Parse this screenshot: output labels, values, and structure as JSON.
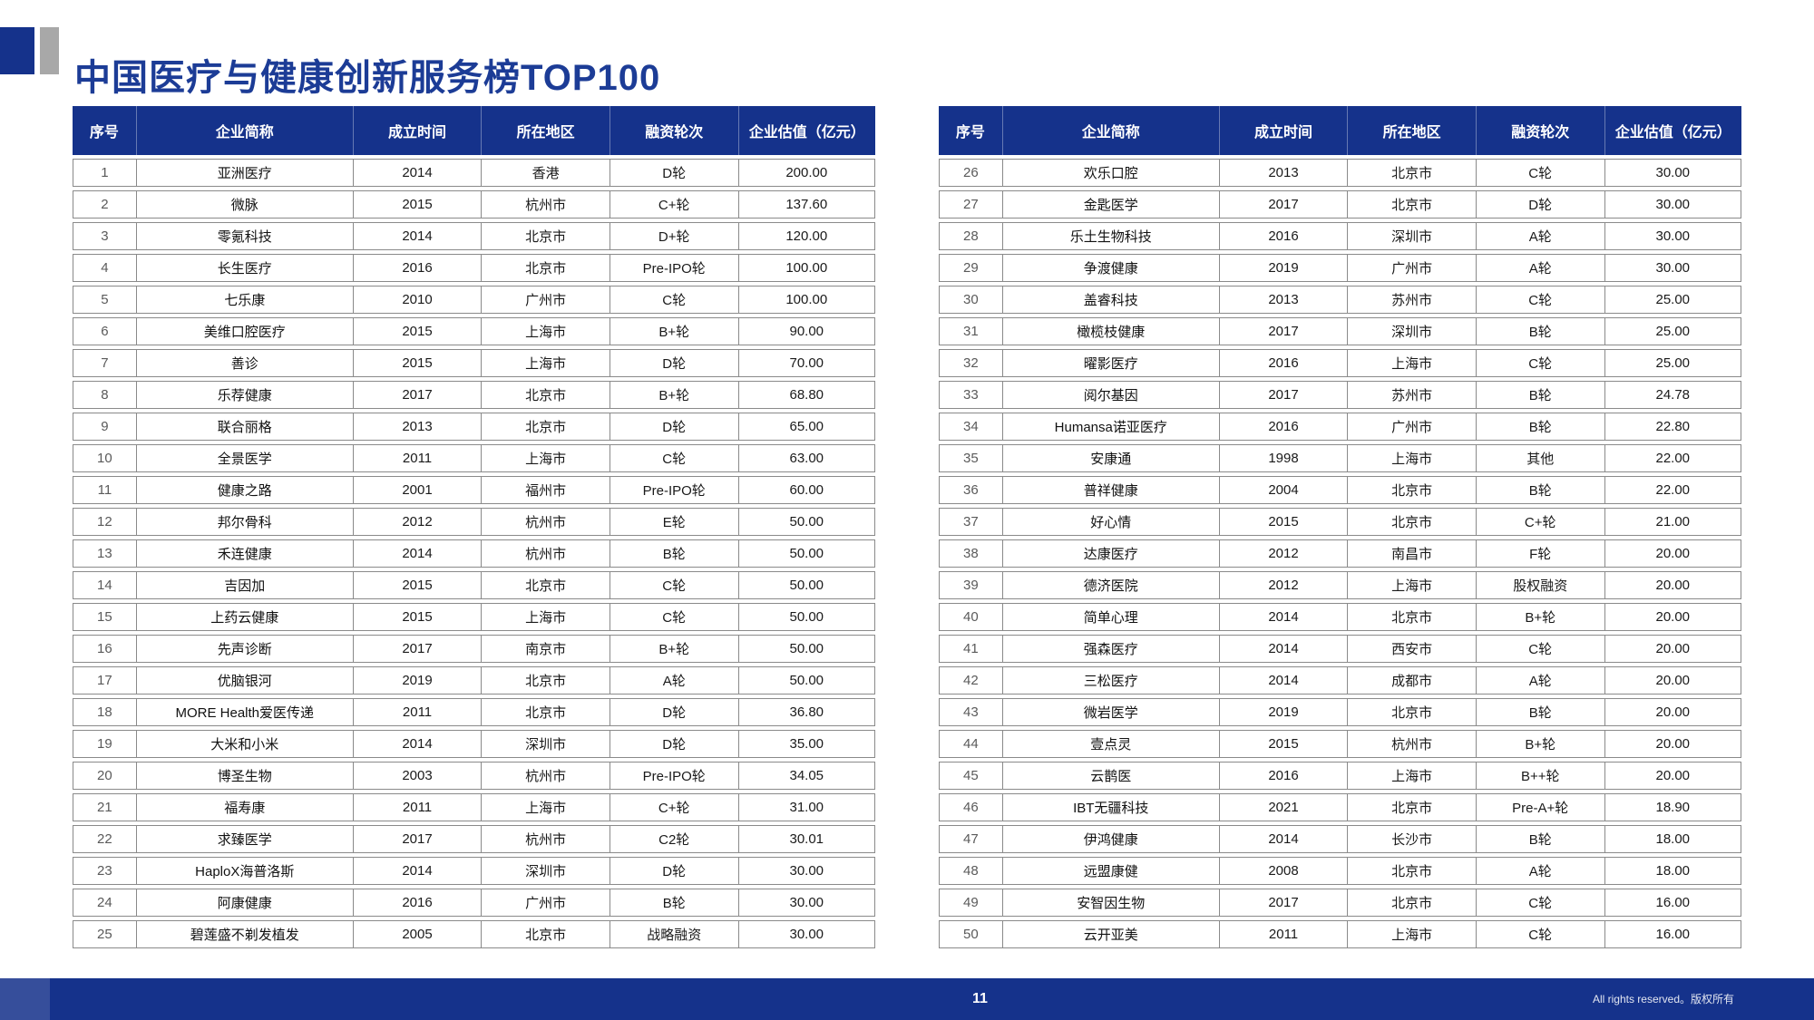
{
  "title": "中国医疗与健康创新服务榜TOP100",
  "table_headers": [
    "序号",
    "企业简称",
    "成立时间",
    "所在地区",
    "融资轮次",
    "企业估值（亿元）"
  ],
  "tables": {
    "left": {
      "rows": [
        [
          "1",
          "亚洲医疗",
          "2014",
          "香港",
          "D轮",
          "200.00"
        ],
        [
          "2",
          "微脉",
          "2015",
          "杭州市",
          "C+轮",
          "137.60"
        ],
        [
          "3",
          "零氪科技",
          "2014",
          "北京市",
          "D+轮",
          "120.00"
        ],
        [
          "4",
          "长生医疗",
          "2016",
          "北京市",
          "Pre-IPO轮",
          "100.00"
        ],
        [
          "5",
          "七乐康",
          "2010",
          "广州市",
          "C轮",
          "100.00"
        ],
        [
          "6",
          "美维口腔医疗",
          "2015",
          "上海市",
          "B+轮",
          "90.00"
        ],
        [
          "7",
          "善诊",
          "2015",
          "上海市",
          "D轮",
          "70.00"
        ],
        [
          "8",
          "乐荐健康",
          "2017",
          "北京市",
          "B+轮",
          "68.80"
        ],
        [
          "9",
          "联合丽格",
          "2013",
          "北京市",
          "D轮",
          "65.00"
        ],
        [
          "10",
          "全景医学",
          "2011",
          "上海市",
          "C轮",
          "63.00"
        ],
        [
          "11",
          "健康之路",
          "2001",
          "福州市",
          "Pre-IPO轮",
          "60.00"
        ],
        [
          "12",
          "邦尔骨科",
          "2012",
          "杭州市",
          "E轮",
          "50.00"
        ],
        [
          "13",
          "禾连健康",
          "2014",
          "杭州市",
          "B轮",
          "50.00"
        ],
        [
          "14",
          "吉因加",
          "2015",
          "北京市",
          "C轮",
          "50.00"
        ],
        [
          "15",
          "上药云健康",
          "2015",
          "上海市",
          "C轮",
          "50.00"
        ],
        [
          "16",
          "先声诊断",
          "2017",
          "南京市",
          "B+轮",
          "50.00"
        ],
        [
          "17",
          "优脑银河",
          "2019",
          "北京市",
          "A轮",
          "50.00"
        ],
        [
          "18",
          "MORE Health爱医传递",
          "2011",
          "北京市",
          "D轮",
          "36.80"
        ],
        [
          "19",
          "大米和小米",
          "2014",
          "深圳市",
          "D轮",
          "35.00"
        ],
        [
          "20",
          "博圣生物",
          "2003",
          "杭州市",
          "Pre-IPO轮",
          "34.05"
        ],
        [
          "21",
          "福寿康",
          "2011",
          "上海市",
          "C+轮",
          "31.00"
        ],
        [
          "22",
          "求臻医学",
          "2017",
          "杭州市",
          "C2轮",
          "30.01"
        ],
        [
          "23",
          "HaploX海普洛斯",
          "2014",
          "深圳市",
          "D轮",
          "30.00"
        ],
        [
          "24",
          "阿康健康",
          "2016",
          "广州市",
          "B轮",
          "30.00"
        ],
        [
          "25",
          "碧莲盛不剃发植发",
          "2005",
          "北京市",
          "战略融资",
          "30.00"
        ]
      ]
    },
    "right": {
      "rows": [
        [
          "26",
          "欢乐口腔",
          "2013",
          "北京市",
          "C轮",
          "30.00"
        ],
        [
          "27",
          "金匙医学",
          "2017",
          "北京市",
          "D轮",
          "30.00"
        ],
        [
          "28",
          "乐土生物科技",
          "2016",
          "深圳市",
          "A轮",
          "30.00"
        ],
        [
          "29",
          "争渡健康",
          "2019",
          "广州市",
          "A轮",
          "30.00"
        ],
        [
          "30",
          "盖睿科技",
          "2013",
          "苏州市",
          "C轮",
          "25.00"
        ],
        [
          "31",
          "橄榄枝健康",
          "2017",
          "深圳市",
          "B轮",
          "25.00"
        ],
        [
          "32",
          "曜影医疗",
          "2016",
          "上海市",
          "C轮",
          "25.00"
        ],
        [
          "33",
          "阅尔基因",
          "2017",
          "苏州市",
          "B轮",
          "24.78"
        ],
        [
          "34",
          "Humansa诺亚医疗",
          "2016",
          "广州市",
          "B轮",
          "22.80"
        ],
        [
          "35",
          "安康通",
          "1998",
          "上海市",
          "其他",
          "22.00"
        ],
        [
          "36",
          "普祥健康",
          "2004",
          "北京市",
          "B轮",
          "22.00"
        ],
        [
          "37",
          "好心情",
          "2015",
          "北京市",
          "C+轮",
          "21.00"
        ],
        [
          "38",
          "达康医疗",
          "2012",
          "南昌市",
          "F轮",
          "20.00"
        ],
        [
          "39",
          "德济医院",
          "2012",
          "上海市",
          "股权融资",
          "20.00"
        ],
        [
          "40",
          "简单心理",
          "2014",
          "北京市",
          "B+轮",
          "20.00"
        ],
        [
          "41",
          "强森医疗",
          "2014",
          "西安市",
          "C轮",
          "20.00"
        ],
        [
          "42",
          "三松医疗",
          "2014",
          "成都市",
          "A轮",
          "20.00"
        ],
        [
          "43",
          "微岩医学",
          "2019",
          "北京市",
          "B轮",
          "20.00"
        ],
        [
          "44",
          "壹点灵",
          "2015",
          "杭州市",
          "B+轮",
          "20.00"
        ],
        [
          "45",
          "云鹊医",
          "2016",
          "上海市",
          "B++轮",
          "20.00"
        ],
        [
          "46",
          "IBT无疆科技",
          "2021",
          "北京市",
          "Pre-A+轮",
          "18.90"
        ],
        [
          "47",
          "伊鸿健康",
          "2014",
          "长沙市",
          "B轮",
          "18.00"
        ],
        [
          "48",
          "远盟康健",
          "2008",
          "北京市",
          "A轮",
          "18.00"
        ],
        [
          "49",
          "安智因生物",
          "2017",
          "北京市",
          "C轮",
          "16.00"
        ],
        [
          "50",
          "云开亚美",
          "2011",
          "上海市",
          "C轮",
          "16.00"
        ]
      ]
    }
  },
  "footer": {
    "page_number": "11",
    "copyright": "All rights reserved。版权所有"
  },
  "colors": {
    "primary_navy": "#15328b",
    "title_blue": "#1c3c96",
    "accent_gray": "#a8a8a8",
    "table_line": "#8a8a8a"
  }
}
